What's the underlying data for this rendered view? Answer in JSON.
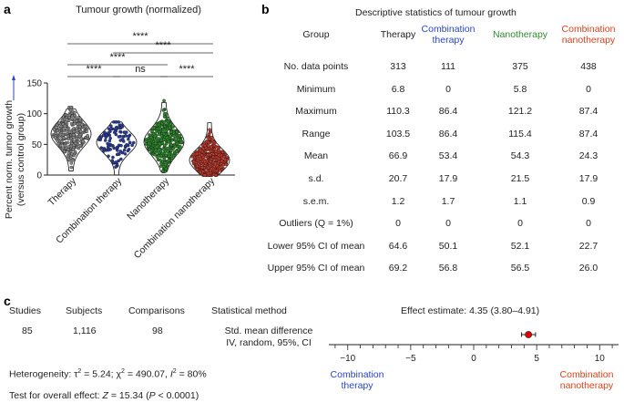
{
  "panels": {
    "a": "a",
    "b": "b",
    "c": "c"
  },
  "panel_a": {
    "title": "Tumour growth (normalized)",
    "ylabel_line1": "Percent norm. tumor growth",
    "ylabel_line2": "(versus control group)",
    "yticks": [
      "0",
      "50",
      "100",
      "150"
    ],
    "groups": [
      "Therapy",
      "Combination therapy",
      "Nanotherapy",
      "Combination nanotherapy"
    ],
    "colors": [
      "#888888",
      "#2b3c9e",
      "#2e8b2e",
      "#c0392b"
    ],
    "significance": [
      {
        "label": "****",
        "from": 0,
        "to": 3
      },
      {
        "label": "****",
        "from": 1,
        "to": 3
      },
      {
        "label": "****",
        "from": 0,
        "to": 2
      },
      {
        "label": "****",
        "from": 0,
        "to": 1
      },
      {
        "label": "ns",
        "from": 1,
        "to": 2
      },
      {
        "label": "****",
        "from": 2,
        "to": 3
      }
    ]
  },
  "chart_data": {
    "type": "scatter",
    "title": "Tumour growth (normalized)",
    "xlabel": "",
    "ylabel": "Percent norm. tumor growth (versus control group)",
    "ylim": [
      0,
      150
    ],
    "categories": [
      "Therapy",
      "Combination therapy",
      "Nanotherapy",
      "Combination nanotherapy"
    ],
    "series": [
      {
        "name": "Therapy",
        "n": 313,
        "min": 6.8,
        "max": 110.3,
        "mean": 66.9,
        "sd": 20.7
      },
      {
        "name": "Combination therapy",
        "n": 111,
        "min": 0,
        "max": 86.4,
        "mean": 53.4,
        "sd": 17.9
      },
      {
        "name": "Nanotherapy",
        "n": 375,
        "min": 5.8,
        "max": 121.2,
        "mean": 54.3,
        "sd": 21.5
      },
      {
        "name": "Combination nanotherapy",
        "n": 438,
        "min": 0,
        "max": 87.4,
        "mean": 24.3,
        "sd": 17.9
      }
    ]
  },
  "panel_b": {
    "title": "Descriptive statistics of tumour growth",
    "header_group": "Group",
    "columns": [
      {
        "line1": "Therapy",
        "line2": "",
        "color": "#222222"
      },
      {
        "line1": "Combination",
        "line2": "therapy",
        "color": "#2a45c8"
      },
      {
        "line1": "Nanotherapy",
        "line2": "",
        "color": "#2e8b2e"
      },
      {
        "line1": "Combination",
        "line2": "nanotherapy",
        "color": "#e0401c"
      }
    ],
    "rows": [
      {
        "label": "No. data points",
        "values": [
          "313",
          "111",
          "375",
          "438"
        ]
      },
      {
        "label": "Minimum",
        "values": [
          "6.8",
          "0",
          "5.8",
          "0"
        ]
      },
      {
        "label": "Maximum",
        "values": [
          "110.3",
          "86.4",
          "121.2",
          "87.4"
        ]
      },
      {
        "label": "Range",
        "values": [
          "103.5",
          "86.4",
          "115.4",
          "87.4"
        ]
      },
      {
        "label": "Mean",
        "values": [
          "66.9",
          "53.4",
          "54.3",
          "24.3"
        ]
      },
      {
        "label": "s.d.",
        "values": [
          "20.7",
          "17.9",
          "21.5",
          "17.9"
        ]
      },
      {
        "label": "s.e.m.",
        "values": [
          "1.2",
          "1.7",
          "1.1",
          "0.9"
        ]
      },
      {
        "label": "Outliers (Q = 1%)",
        "values": [
          "0",
          "0",
          "0",
          "0"
        ]
      },
      {
        "label": "Lower 95% CI of mean",
        "values": [
          "64.6",
          "50.1",
          "52.1",
          "22.7"
        ]
      },
      {
        "label": "Upper 95% CI of mean",
        "values": [
          "69.2",
          "56.8",
          "56.5",
          "26.0"
        ]
      }
    ]
  },
  "panel_c": {
    "headers": [
      "Studies",
      "Subjects",
      "Comparisons",
      "Statistical method"
    ],
    "values": [
      "85",
      "1,116",
      "98"
    ],
    "method_line1": "Std. mean difference",
    "method_line2": "IV, random, 95%, CI",
    "heterogeneity_prefix": "Heterogeneity: τ",
    "heterogeneity_tau_val": " = 5.24; χ",
    "heterogeneity_chi_val": " = 490.07, ",
    "heterogeneity_i": "I",
    "heterogeneity_i_val": " = 80%",
    "superscript_two": "2",
    "overall_prefix": "Test for overall effect: ",
    "overall_z": "Z",
    "overall_mid": " = 15.34 (",
    "overall_p": "P",
    "overall_end": " < 0.0001)",
    "effect_label": "Effect estimate: 4.35 (3.80–4.91)",
    "effect": {
      "estimate": 4.35,
      "lower": 3.8,
      "upper": 4.91
    },
    "axis_ticks": [
      -10,
      -5,
      0,
      5,
      10
    ],
    "axis_tick_labels": [
      "−10",
      "−5",
      "0",
      "5",
      "10"
    ],
    "axis_range": [
      -11.5,
      11.5
    ],
    "left_label_line1": "Combination",
    "left_label_line2": "therapy",
    "right_label_line1": "Combination",
    "right_label_line2": "nanotherapy",
    "left_color": "#2a45c8",
    "right_color": "#e0401c",
    "point_color": "#e00000"
  }
}
